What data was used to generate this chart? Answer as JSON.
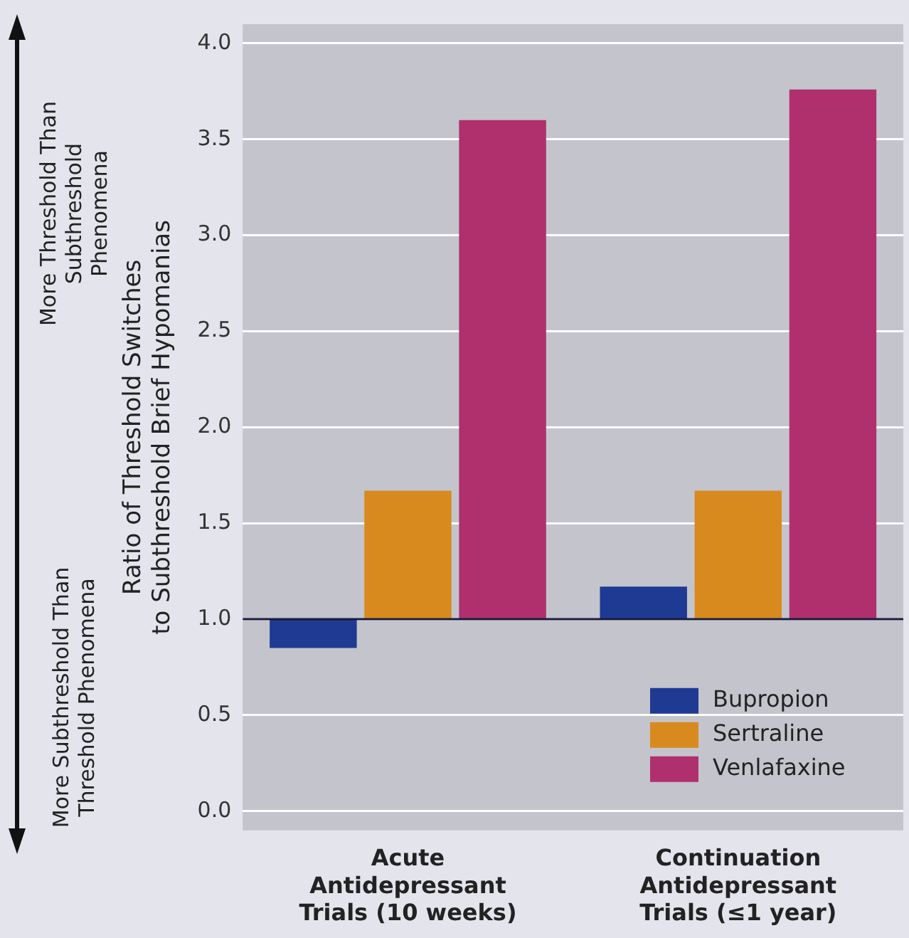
{
  "chart_data": {
    "type": "bar",
    "ylabel": "Ratio of Threshold Switches to Subthreshold Brief Hypomanias",
    "categories": [
      "Acute Antidepressant Trials (10 weeks)",
      "Continuation Antidepressant Trials (≤1 year)"
    ],
    "series": [
      {
        "name": "Bupropion",
        "color": "#1f3a93",
        "base": [
          1,
          1
        ],
        "values": [
          -0.15,
          0.17
        ]
      },
      {
        "name": "Sertraline",
        "color": "#d98a1e",
        "base": [
          1,
          1
        ],
        "values": [
          0.67,
          0.67
        ]
      },
      {
        "name": "Venlafaxine",
        "color": "#b0306e",
        "base": [
          1,
          1
        ],
        "values": [
          2.6,
          2.76
        ]
      }
    ],
    "ylim": [
      -0.1,
      4.1
    ],
    "yticks": [
      {
        "value": 0,
        "label": "0.0"
      },
      {
        "value": 0.5,
        "label": "0.5"
      },
      {
        "value": 1,
        "label": "1.0"
      },
      {
        "value": 1.5,
        "label": "1.5"
      },
      {
        "value": 2,
        "label": "2.0"
      },
      {
        "value": 2.5,
        "label": "2.5"
      },
      {
        "value": 3,
        "label": "3.0"
      },
      {
        "value": 3.5,
        "label": "3.5"
      },
      {
        "value": 4,
        "label": "4.0"
      }
    ],
    "ref_lines": [
      {
        "axis": "y",
        "value": 1,
        "color": "#1a1a40"
      }
    ],
    "annotations": [
      "More Threshold Than Subthreshold Phenomena",
      "More Subthreshold Than Threshold Phenomena"
    ],
    "grid": "y",
    "legend": "bottom right"
  }
}
